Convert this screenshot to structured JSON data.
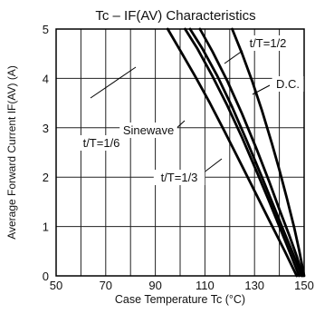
{
  "chart_data": {
    "type": "line",
    "title": "Tc – IF(AV) Characteristics",
    "xlabel": "Case Temperature  Tc (°C)",
    "ylabel": "Average Forward Current  IF(AV) (A)",
    "xlim": [
      50,
      150
    ],
    "ylim": [
      0,
      5
    ],
    "xticks": [
      50,
      70,
      90,
      110,
      130,
      150
    ],
    "yticks": [
      0,
      1,
      2,
      3,
      4,
      5
    ],
    "grid": true,
    "series": [
      {
        "name": "t/T=1/6",
        "x": [
          95,
          100,
          106,
          112,
          118,
          124,
          130,
          136,
          142,
          147
        ],
        "y": [
          5,
          4.57,
          4.05,
          3.5,
          2.92,
          2.32,
          1.72,
          1.12,
          0.52,
          0
        ]
      },
      {
        "name": "t/T=1/3",
        "x": [
          102,
          107,
          113,
          119,
          125,
          131,
          136,
          141,
          145,
          148
        ],
        "y": [
          5,
          4.6,
          4.05,
          3.45,
          2.8,
          2.1,
          1.5,
          0.88,
          0.38,
          0
        ]
      },
      {
        "name": "Sinewave",
        "x": [
          104,
          109,
          115,
          121,
          127,
          133,
          138,
          142,
          145.5,
          149
        ],
        "y": [
          5,
          4.6,
          4.05,
          3.42,
          2.72,
          2.0,
          1.38,
          0.88,
          0.45,
          0
        ]
      },
      {
        "name": "t/T=1/2",
        "x": [
          108,
          113,
          119,
          125,
          131,
          136,
          140,
          144,
          147,
          149.5
        ],
        "y": [
          5,
          4.55,
          3.95,
          3.28,
          2.55,
          1.9,
          1.35,
          0.82,
          0.4,
          0
        ]
      },
      {
        "name": "D.C.",
        "x": [
          121,
          125,
          129,
          133,
          137,
          140,
          143,
          146,
          148,
          150
        ],
        "y": [
          5,
          4.5,
          3.95,
          3.35,
          2.68,
          2.15,
          1.58,
          0.98,
          0.52,
          0
        ]
      }
    ],
    "annotations": [
      "t/T=1/6",
      "Sinewave",
      "t/T=1/3",
      "t/T=1/2",
      "D.C."
    ]
  }
}
